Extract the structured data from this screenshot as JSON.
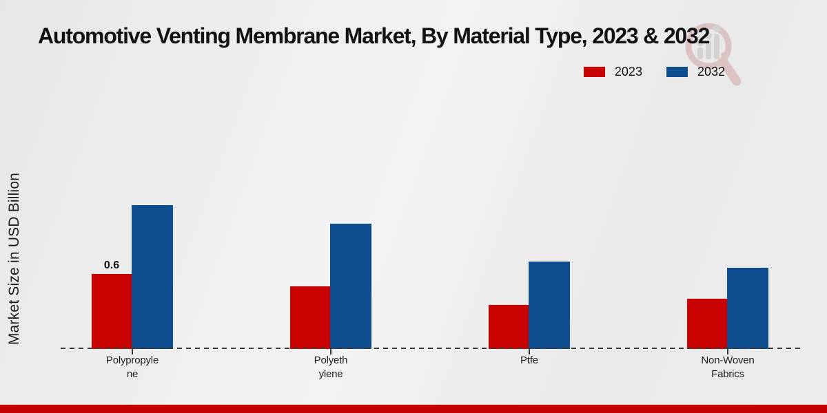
{
  "page": {
    "footer_color": "#c40000",
    "background_color": "#ededed",
    "axis_line_color": "#3d3d3d"
  },
  "watermark": {
    "icon": "magnifier-bar-chart-logo"
  },
  "chart_data": {
    "type": "bar",
    "title": "Automotive Venting Membrane Market, By Material Type, 2023 & 2032",
    "ylabel": "Market Size in USD Billion",
    "xlabel": "",
    "categories": [
      "Polypropylene",
      "Polyethylene",
      "Ptfe",
      "Non-Woven Fabrics"
    ],
    "category_display": [
      "Polypropyle\nne",
      "Polyeth\nylene",
      "Ptfe",
      "Non-Woven\nFabrics"
    ],
    "series": [
      {
        "name": "2023",
        "color": "#c80101",
        "values": [
          0.6,
          0.5,
          0.35,
          0.4
        ]
      },
      {
        "name": "2032",
        "color": "#0e4d8e",
        "values": [
          1.15,
          1.0,
          0.7,
          0.65
        ]
      }
    ],
    "bar_value_labels": {
      "2023": [
        "0.6",
        null,
        null,
        null
      ],
      "2032": [
        null,
        null,
        null,
        null
      ]
    },
    "ylim": [
      0,
      1.3
    ],
    "grid": false,
    "y_axis_ticks_visible": false,
    "legend_position": "top-right",
    "x_baseline_style": "dashed"
  }
}
